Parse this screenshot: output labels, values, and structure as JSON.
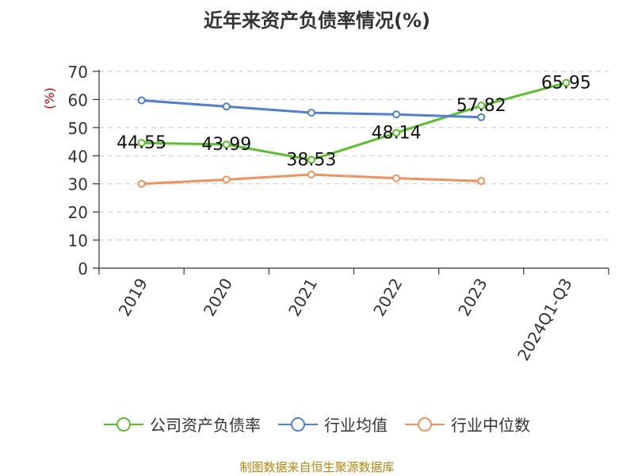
{
  "chart_data": {
    "type": "line",
    "title": "近年来资产负债率情况(%)",
    "ylabel": "(%)",
    "xlabel": "",
    "categories": [
      "2019",
      "2020",
      "2021",
      "2022",
      "2023",
      "2024Q1-Q3"
    ],
    "ylim": [
      0,
      70
    ],
    "yticks": [
      0,
      10,
      20,
      30,
      40,
      50,
      60,
      70
    ],
    "grid": true,
    "legend_position": "bottom",
    "series": [
      {
        "name": "公司资产负债率",
        "color": "#5ac02a",
        "values": [
          44.55,
          43.99,
          38.53,
          48.14,
          57.82,
          65.95
        ],
        "labels": [
          "44.55",
          "43.99",
          "38.53",
          "48.14",
          "57.82",
          "65.95"
        ]
      },
      {
        "name": "行业均值",
        "color": "#4f7fd8",
        "values": [
          59.7,
          57.5,
          55.3,
          54.7,
          53.7,
          null
        ]
      },
      {
        "name": "行业中位数",
        "color": "#f3915b",
        "values": [
          30.0,
          31.5,
          33.3,
          32.0,
          31.0,
          null
        ]
      }
    ]
  },
  "source": "制图数据来自恒生聚源数据库"
}
